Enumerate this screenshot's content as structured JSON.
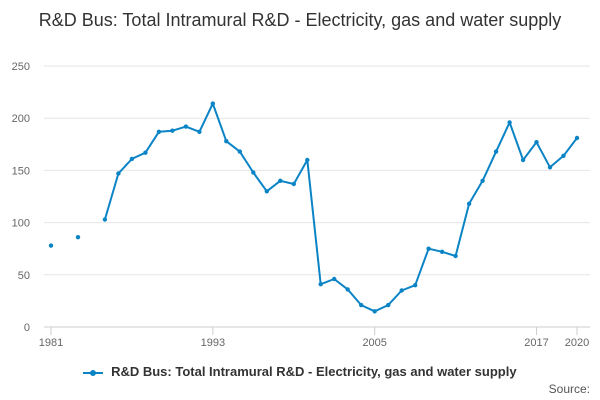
{
  "title": "R&D Bus: Total Intramural R&D - Electricity, gas and water supply",
  "source_label": "Source:",
  "colors": {
    "series": "#0b84c6",
    "grid": "#e6e6e6",
    "axis": "#cccccc"
  },
  "chart_data": {
    "type": "line",
    "title": "R&D Bus: Total Intramural R&D - Electricity, gas and water supply",
    "xlabel": "",
    "ylabel": "",
    "ylim": [
      0,
      250
    ],
    "xlim": [
      1981,
      2020
    ],
    "yticks": [
      0,
      50,
      100,
      150,
      200,
      250
    ],
    "xticks": [
      1981,
      1993,
      2005,
      2017,
      2020
    ],
    "grid": true,
    "legend": "bottom",
    "series": [
      {
        "name": "R&D Bus: Total Intramural R&D - Electricity, gas and water supply",
        "points": [
          [
            1981,
            78
          ],
          [
            1983,
            86
          ],
          [
            1985,
            103
          ],
          [
            1986,
            147
          ],
          [
            1987,
            161
          ],
          [
            1988,
            167
          ],
          [
            1989,
            187
          ],
          [
            1990,
            188
          ],
          [
            1991,
            192
          ],
          [
            1992,
            187
          ],
          [
            1993,
            214
          ],
          [
            1994,
            178
          ],
          [
            1995,
            168
          ],
          [
            1996,
            148
          ],
          [
            1997,
            130
          ],
          [
            1998,
            140
          ],
          [
            1999,
            137
          ],
          [
            2000,
            160
          ],
          [
            2001,
            41
          ],
          [
            2002,
            46
          ],
          [
            2003,
            36
          ],
          [
            2004,
            21
          ],
          [
            2005,
            15
          ],
          [
            2006,
            21
          ],
          [
            2007,
            35
          ],
          [
            2008,
            40
          ],
          [
            2009,
            75
          ],
          [
            2010,
            72
          ],
          [
            2011,
            68
          ],
          [
            2012,
            118
          ],
          [
            2013,
            140
          ],
          [
            2014,
            168
          ],
          [
            2015,
            196
          ],
          [
            2016,
            160
          ],
          [
            2017,
            177
          ],
          [
            2018,
            153
          ],
          [
            2019,
            164
          ],
          [
            2020,
            181
          ]
        ]
      }
    ]
  }
}
